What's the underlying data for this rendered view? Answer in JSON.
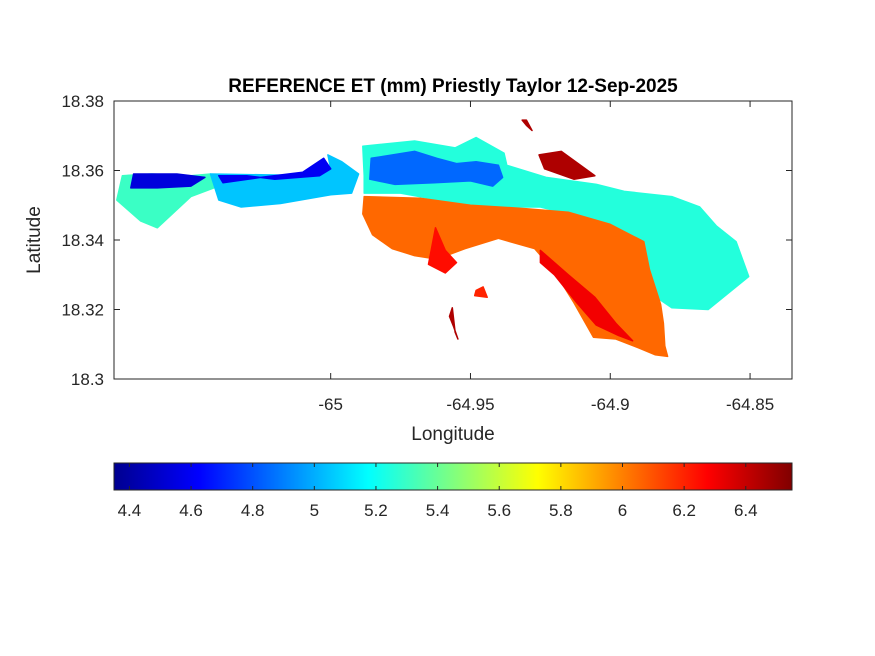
{
  "chart_data": {
    "type": "heatmap",
    "title": "REFERENCE ET (mm) Priestly Taylor 12-Sep-2025",
    "xlabel": "Longitude",
    "ylabel": "Latitude",
    "xlim": [
      -65.0775,
      -64.835
    ],
    "ylim": [
      18.3,
      18.38
    ],
    "x_ticks": [
      -65,
      -64.95,
      -64.9,
      -64.85
    ],
    "x_tick_labels": [
      "-65",
      "-64.95",
      "-64.9",
      "-64.85"
    ],
    "y_ticks": [
      18.3,
      18.32,
      18.34,
      18.36,
      18.38
    ],
    "y_tick_labels": [
      "18.3",
      "18.32",
      "18.34",
      "18.36",
      "18.38"
    ],
    "colorbar": {
      "orientation": "horizontal",
      "location": "below",
      "colormap": "jet",
      "clim": [
        4.35,
        6.55
      ],
      "ticks": [
        4.4,
        4.6,
        4.8,
        5,
        5.2,
        5.4,
        5.6,
        5.8,
        6,
        6.2,
        6.4
      ],
      "tick_labels": [
        "4.4",
        "4.6",
        "4.8",
        "5",
        "5.2",
        "5.4",
        "5.6",
        "5.8",
        "6",
        "6.2",
        "6.4"
      ]
    },
    "regions": [
      {
        "name": "west-tip",
        "value": 5.3,
        "points": [
          [
            -65.0765,
            18.3515
          ],
          [
            -65.0745,
            18.3585
          ],
          [
            -65.064,
            18.359
          ],
          [
            -65.05,
            18.3585
          ],
          [
            -65.043,
            18.359
          ],
          [
            -65.04,
            18.3555
          ],
          [
            -65.05,
            18.3525
          ],
          [
            -65.062,
            18.3435
          ],
          [
            -65.068,
            18.3455
          ]
        ]
      },
      {
        "name": "west-far",
        "value": 4.55,
        "points": [
          [
            -65.0715,
            18.355
          ],
          [
            -65.0705,
            18.359
          ],
          [
            -65.055,
            18.359
          ],
          [
            -65.045,
            18.358
          ],
          [
            -65.05,
            18.3555
          ],
          [
            -65.062,
            18.355
          ]
        ]
      },
      {
        "name": "west-central",
        "value": 5.05,
        "points": [
          [
            -65.043,
            18.359
          ],
          [
            -65.0045,
            18.3585
          ],
          [
            -65.0,
            18.3605
          ],
          [
            -65.001,
            18.3645
          ],
          [
            -64.996,
            18.3625
          ],
          [
            -64.99,
            18.359
          ],
          [
            -64.9925,
            18.3535
          ],
          [
            -65.0,
            18.353
          ],
          [
            -65.018,
            18.3505
          ],
          [
            -65.032,
            18.3495
          ],
          [
            -65.04,
            18.3515
          ]
        ]
      },
      {
        "name": "west-central-dark",
        "value": 4.6,
        "points": [
          [
            -65.04,
            18.3585
          ],
          [
            -65.03,
            18.3585
          ],
          [
            -65.02,
            18.3575
          ],
          [
            -65.004,
            18.3585
          ],
          [
            -65.0,
            18.3605
          ],
          [
            -65.0025,
            18.3635
          ],
          [
            -65.01,
            18.3595
          ],
          [
            -65.025,
            18.358
          ],
          [
            -65.0385,
            18.3565
          ]
        ]
      },
      {
        "name": "north-central",
        "value": 5.25,
        "points": [
          [
            -64.988,
            18.3585
          ],
          [
            -64.9885,
            18.367
          ],
          [
            -64.97,
            18.3685
          ],
          [
            -64.9555,
            18.3665
          ],
          [
            -64.948,
            18.3695
          ],
          [
            -64.938,
            18.365
          ],
          [
            -64.937,
            18.3615
          ],
          [
            -64.923,
            18.358
          ],
          [
            -64.905,
            18.356
          ],
          [
            -64.895,
            18.354
          ],
          [
            -64.878,
            18.3525
          ],
          [
            -64.868,
            18.3495
          ],
          [
            -64.862,
            18.344
          ],
          [
            -64.855,
            18.3395
          ],
          [
            -64.8505,
            18.3295
          ],
          [
            -64.865,
            18.32
          ],
          [
            -64.878,
            18.3205
          ],
          [
            -64.888,
            18.326
          ],
          [
            -64.892,
            18.3355
          ],
          [
            -64.905,
            18.3455
          ],
          [
            -64.925,
            18.3495
          ],
          [
            -64.94,
            18.3495
          ],
          [
            -64.958,
            18.351
          ],
          [
            -64.975,
            18.3535
          ],
          [
            -64.988,
            18.3535
          ]
        ]
      },
      {
        "name": "north-central-blue",
        "value": 4.85,
        "points": [
          [
            -64.986,
            18.3575
          ],
          [
            -64.9855,
            18.3635
          ],
          [
            -64.97,
            18.3655
          ],
          [
            -64.962,
            18.3635
          ],
          [
            -64.955,
            18.362
          ],
          [
            -64.948,
            18.3625
          ],
          [
            -64.94,
            18.3615
          ],
          [
            -64.9385,
            18.358
          ],
          [
            -64.942,
            18.3555
          ],
          [
            -64.95,
            18.357
          ],
          [
            -64.963,
            18.3565
          ],
          [
            -64.977,
            18.356
          ]
        ]
      },
      {
        "name": "south-band",
        "value": 6.05,
        "points": [
          [
            -64.988,
            18.3525
          ],
          [
            -64.968,
            18.352
          ],
          [
            -64.95,
            18.35
          ],
          [
            -64.93,
            18.349
          ],
          [
            -64.915,
            18.348
          ],
          [
            -64.9,
            18.3445
          ],
          [
            -64.888,
            18.3395
          ],
          [
            -64.886,
            18.3315
          ],
          [
            -64.882,
            18.3215
          ],
          [
            -64.881,
            18.316
          ],
          [
            -64.8805,
            18.3095
          ],
          [
            -64.8795,
            18.3065
          ],
          [
            -64.884,
            18.307
          ],
          [
            -64.89,
            18.309
          ],
          [
            -64.898,
            18.3115
          ],
          [
            -64.906,
            18.312
          ],
          [
            -64.913,
            18.322
          ],
          [
            -64.92,
            18.331
          ],
          [
            -64.927,
            18.3375
          ],
          [
            -64.94,
            18.3405
          ],
          [
            -64.952,
            18.3375
          ],
          [
            -64.962,
            18.3345
          ],
          [
            -64.97,
            18.3355
          ],
          [
            -64.978,
            18.3375
          ],
          [
            -64.985,
            18.3415
          ],
          [
            -64.9885,
            18.3475
          ]
        ]
      },
      {
        "name": "southeast-peninsula",
        "value": 6.3,
        "points": [
          [
            -64.925,
            18.337
          ],
          [
            -64.915,
            18.33
          ],
          [
            -64.9055,
            18.3235
          ],
          [
            -64.898,
            18.316
          ],
          [
            -64.892,
            18.311
          ],
          [
            -64.897,
            18.3125
          ],
          [
            -64.905,
            18.3155
          ],
          [
            -64.912,
            18.322
          ],
          [
            -64.92,
            18.33
          ],
          [
            -64.925,
            18.3335
          ]
        ]
      },
      {
        "name": "northeast-cape",
        "value": 6.45,
        "points": [
          [
            -64.9255,
            18.3645
          ],
          [
            -64.9175,
            18.3655
          ],
          [
            -64.9055,
            18.3585
          ],
          [
            -64.913,
            18.3575
          ],
          [
            -64.9235,
            18.3605
          ]
        ]
      },
      {
        "name": "south-spit",
        "value": 6.25,
        "points": [
          [
            -64.9625,
            18.3435
          ],
          [
            -64.959,
            18.337
          ],
          [
            -64.955,
            18.3335
          ],
          [
            -64.959,
            18.3305
          ],
          [
            -64.965,
            18.333
          ]
        ]
      },
      {
        "name": "small-island",
        "value": 6.45,
        "points": [
          [
            -64.9565,
            18.3205
          ],
          [
            -64.9555,
            18.3135
          ],
          [
            -64.9545,
            18.3115
          ],
          [
            -64.956,
            18.315
          ],
          [
            -64.9575,
            18.318
          ]
        ]
      },
      {
        "name": "islet-east",
        "value": 6.2,
        "points": [
          [
            -64.9455,
            18.3265
          ],
          [
            -64.944,
            18.3235
          ],
          [
            -64.9485,
            18.324
          ],
          [
            -64.948,
            18.3255
          ]
        ]
      },
      {
        "name": "islet-north",
        "value": 6.45,
        "points": [
          [
            -64.93,
            18.3745
          ],
          [
            -64.928,
            18.3715
          ],
          [
            -64.93,
            18.373
          ],
          [
            -64.9315,
            18.3745
          ]
        ]
      }
    ]
  }
}
